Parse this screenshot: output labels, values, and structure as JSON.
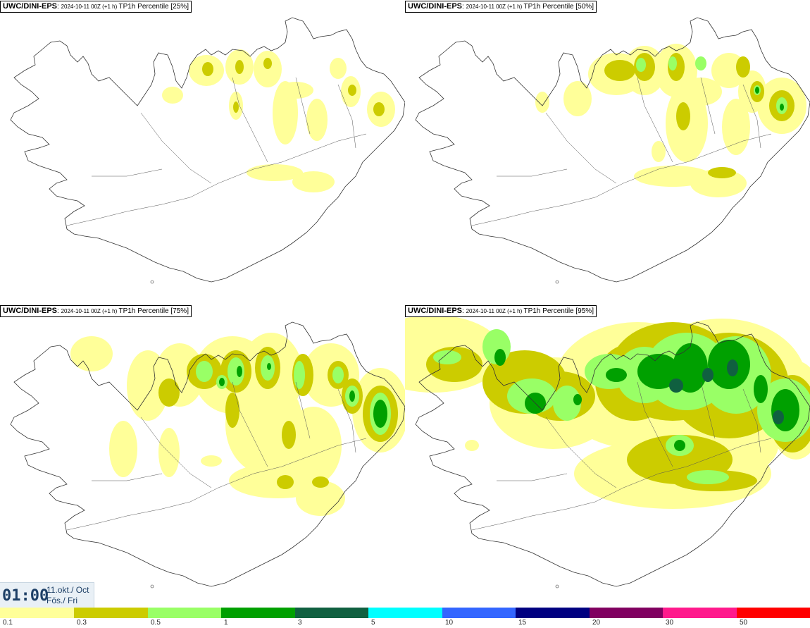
{
  "panels": [
    {
      "model": "UWC/DINI-EPS",
      "run": "2024-10-11 00Z (+1 h)",
      "field": "TP1h Percentile [25%]"
    },
    {
      "model": "UWC/DINI-EPS",
      "run": "2024-10-11 00Z (+1 h)",
      "field": "TP1h Percentile [50%]"
    },
    {
      "model": "UWC/DINI-EPS",
      "run": "2024-10-11 00Z (+1 h)",
      "field": "TP1h Percentile [75%]"
    },
    {
      "model": "UWC/DINI-EPS",
      "run": "2024-10-11 00Z (+1 h)",
      "field": "TP1h Percentile [95%]"
    }
  ],
  "time": {
    "clock": "01:00",
    "date_line1": "11.okt./ Oct",
    "date_line2": "Fös./ Fri"
  },
  "legend": {
    "colors": [
      "#ffff99",
      "#cccc00",
      "#99ff66",
      "#00a000",
      "#106040",
      "#00ffff",
      "#3366ff",
      "#000080",
      "#800060",
      "#ff1a8c",
      "#ff0000"
    ],
    "ticks": [
      "0.1",
      "0.3",
      "0.5",
      "1",
      "3",
      "5",
      "10",
      "15",
      "20",
      "30",
      "50"
    ]
  }
}
